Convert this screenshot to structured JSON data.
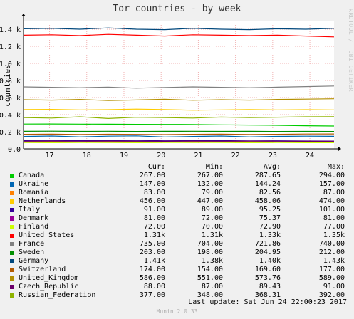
{
  "chart_data": {
    "type": "line",
    "title": "Tor countries - by week",
    "ylabel": "countries",
    "side_text": "RRDTOOL / TOBI OETIKER",
    "ylim": [
      0,
      1500
    ],
    "yticks": [
      "0.0",
      "0.2 k",
      "0.4 k",
      "0.6 k",
      "0.8 k",
      "1.0 k",
      "1.2 k",
      "1.4 k"
    ],
    "yticks_values": [
      0,
      200,
      400,
      600,
      800,
      1000,
      1200,
      1400
    ],
    "xticks": [
      "17",
      "18",
      "19",
      "20",
      "21",
      "22",
      "23",
      "24"
    ],
    "x_range_days": [
      16.3,
      24.65
    ],
    "grid": true,
    "series": [
      {
        "name": "Canada",
        "color": "#00cc00",
        "cur": "267.00",
        "min": "267.00",
        "avg": "287.65",
        "max": "294.00",
        "values": [
          290,
          291,
          289,
          288,
          287,
          286,
          285,
          281,
          278,
          275,
          270,
          267
        ]
      },
      {
        "name": "Ukraine",
        "color": "#0066b3",
        "cur": "147.00",
        "min": "132.00",
        "avg": "144.24",
        "max": "157.00",
        "values": [
          145,
          150,
          140,
          148,
          152,
          138,
          145,
          150,
          140,
          146,
          148,
          147
        ]
      },
      {
        "name": "Romania",
        "color": "#ff8000",
        "cur": "83.00",
        "min": "79.00",
        "avg": "82.56",
        "max": "87.00",
        "values": [
          82,
          83,
          81,
          84,
          82,
          80,
          83,
          84,
          82,
          81,
          83,
          83
        ]
      },
      {
        "name": "Netherlands",
        "color": "#ffcc00",
        "cur": "456.00",
        "min": "447.00",
        "avg": "458.06",
        "max": "474.00",
        "values": [
          460,
          462,
          455,
          458,
          465,
          460,
          452,
          456,
          460,
          455,
          458,
          456
        ]
      },
      {
        "name": "Italy",
        "color": "#330099",
        "cur": "91.00",
        "min": "89.00",
        "avg": "95.25",
        "max": "101.00",
        "values": [
          97,
          99,
          95,
          96,
          98,
          94,
          95,
          96,
          93,
          94,
          92,
          91
        ]
      },
      {
        "name": "Denmark",
        "color": "#990099",
        "cur": "81.00",
        "min": "72.00",
        "avg": "75.37",
        "max": "81.00",
        "values": [
          75,
          74,
          76,
          75,
          74,
          76,
          75,
          77,
          74,
          76,
          78,
          81
        ]
      },
      {
        "name": "Finland",
        "color": "#ccff00",
        "cur": "72.00",
        "min": "70.00",
        "avg": "72.90",
        "max": "77.00",
        "values": [
          73,
          72,
          74,
          73,
          72,
          73,
          74,
          73,
          72,
          73,
          72,
          72
        ]
      },
      {
        "name": "United_States",
        "color": "#ff0000",
        "cur": "1.31k",
        "min": "1.31k",
        "avg": "1.33k",
        "max": "1.35k",
        "values": [
          1330,
          1335,
          1325,
          1340,
          1330,
          1320,
          1335,
          1330,
          1325,
          1330,
          1320,
          1310
        ]
      },
      {
        "name": "France",
        "color": "#808080",
        "cur": "735.00",
        "min": "704.00",
        "avg": "721.86",
        "max": "740.00",
        "values": [
          725,
          720,
          715,
          722,
          710,
          718,
          725,
          720,
          715,
          722,
          728,
          735
        ]
      },
      {
        "name": "Sweden",
        "color": "#008f00",
        "cur": "203.00",
        "min": "198.00",
        "avg": "204.95",
        "max": "212.00",
        "values": [
          205,
          207,
          204,
          206,
          203,
          205,
          206,
          204,
          205,
          203,
          204,
          203
        ]
      },
      {
        "name": "Germany",
        "color": "#00487d",
        "cur": "1.41k",
        "min": "1.38k",
        "avg": "1.40k",
        "max": "1.43k",
        "values": [
          1405,
          1410,
          1400,
          1415,
          1400,
          1395,
          1410,
          1400,
          1395,
          1405,
          1400,
          1410
        ]
      },
      {
        "name": "Switzerland",
        "color": "#b35a00",
        "cur": "174.00",
        "min": "154.00",
        "avg": "169.60",
        "max": "177.00",
        "values": [
          170,
          172,
          168,
          171,
          169,
          167,
          170,
          172,
          168,
          170,
          173,
          174
        ]
      },
      {
        "name": "United_Kingdom",
        "color": "#b38f00",
        "cur": "586.00",
        "min": "551.00",
        "avg": "573.76",
        "max": "589.00",
        "values": [
          575,
          570,
          578,
          565,
          572,
          580,
          568,
          575,
          570,
          578,
          582,
          586
        ]
      },
      {
        "name": "Czech_Republic",
        "color": "#6b006b",
        "cur": "88.00",
        "min": "87.00",
        "avg": "89.43",
        "max": "91.00",
        "values": [
          89,
          90,
          89,
          90,
          89,
          88,
          90,
          89,
          90,
          89,
          88,
          88
        ]
      },
      {
        "name": "Russian_Federation",
        "color": "#8fb300",
        "cur": "377.00",
        "min": "348.00",
        "avg": "368.31",
        "max": "392.00",
        "values": [
          365,
          360,
          375,
          355,
          370,
          365,
          360,
          372,
          365,
          370,
          375,
          377
        ]
      }
    ]
  },
  "legend_headers": {
    "cur": "Cur:",
    "min": "Min:",
    "avg": "Avg:",
    "max": "Max:"
  },
  "footer": {
    "last_update": "Last update:  Sat Jun 24 22:00:23 2017",
    "munin": "Munin 2.0.33"
  }
}
